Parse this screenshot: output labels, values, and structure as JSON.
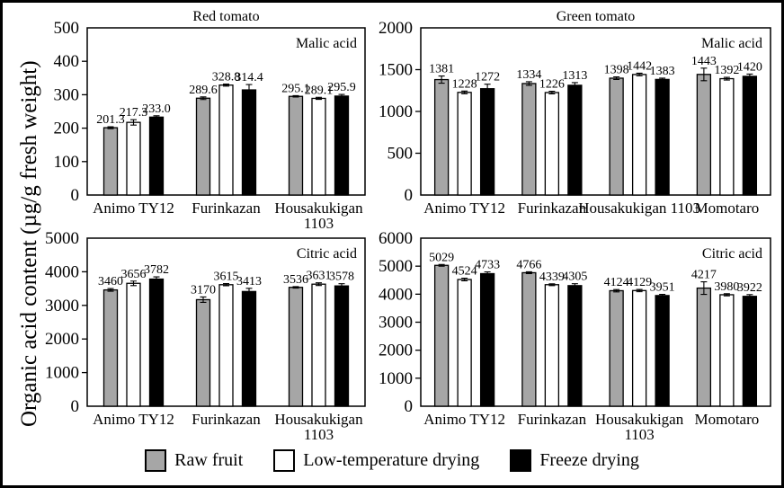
{
  "figure": {
    "y_axis_label": "Organic acid content (µg/g fresh weight)",
    "background_color": "#ffffff",
    "border_color": "#000000",
    "legend": [
      {
        "label": "Raw fruit",
        "color": "#a6a6a6"
      },
      {
        "label": "Low-temperature drying",
        "color": "#ffffff"
      },
      {
        "label": "Freeze drying",
        "color": "#000000"
      }
    ]
  },
  "chart_data": [
    {
      "type": "bar",
      "title": "Red tomato",
      "inner_label": "Malic acid",
      "ylabel": "Organic acid content (µg/g fresh weight)",
      "ylim": [
        0,
        500
      ],
      "ytick_step": 100,
      "value_decimals": 1,
      "grid": false,
      "legend_position": "bottom-shared",
      "categories": [
        "Animo TY12",
        "Furinkazan",
        "Housakukigan\n1103"
      ],
      "series": [
        {
          "name": "Raw fruit",
          "values": [
            201.3,
            289.6,
            295.1
          ],
          "errors": [
            3,
            4,
            2
          ]
        },
        {
          "name": "Low-temperature drying",
          "values": [
            217.3,
            328.8,
            289.1
          ],
          "errors": [
            8,
            3,
            3
          ]
        },
        {
          "name": "Freeze drying",
          "values": [
            233.0,
            314.4,
            295.9
          ],
          "errors": [
            4,
            16,
            5
          ]
        }
      ]
    },
    {
      "type": "bar",
      "title": "Green tomato",
      "inner_label": "Malic acid",
      "ylabel": "Organic acid content (µg/g fresh weight)",
      "ylim": [
        0,
        2000
      ],
      "ytick_step": 500,
      "value_decimals": 0,
      "grid": false,
      "legend_position": "bottom-shared",
      "categories": [
        "Animo TY12",
        "Furinkazan",
        "Housakukigan 1103",
        "Momotaro"
      ],
      "series": [
        {
          "name": "Raw fruit",
          "values": [
            1381,
            1334,
            1398,
            1443
          ],
          "errors": [
            43,
            22,
            16,
            75
          ]
        },
        {
          "name": "Low-temperature drying",
          "values": [
            1228,
            1226,
            1442,
            1392
          ],
          "errors": [
            16,
            16,
            16,
            16
          ]
        },
        {
          "name": "Freeze drying",
          "values": [
            1272,
            1313,
            1383,
            1420
          ],
          "errors": [
            54,
            32,
            16,
            27
          ]
        }
      ]
    },
    {
      "type": "bar",
      "title": "",
      "inner_label": "Citric acid",
      "ylabel": "Organic acid content (µg/g fresh weight)",
      "ylim": [
        0,
        5000
      ],
      "ytick_step": 1000,
      "value_decimals": 0,
      "grid": false,
      "legend_position": "bottom-shared",
      "categories": [
        "Animo TY12",
        "Furinkazan",
        "Housakukigan\n1103"
      ],
      "series": [
        {
          "name": "Raw fruit",
          "values": [
            3460,
            3170,
            3536
          ],
          "errors": [
            40,
            80,
            21
          ]
        },
        {
          "name": "Low-temperature drying",
          "values": [
            3656,
            3615,
            3631
          ],
          "errors": [
            67,
            32,
            40
          ]
        },
        {
          "name": "Freeze drying",
          "values": [
            3782,
            3413,
            3578
          ],
          "errors": [
            67,
            94,
            67
          ]
        }
      ]
    },
    {
      "type": "bar",
      "title": "",
      "inner_label": "Citric acid",
      "ylabel": "Organic acid content (µg/g fresh weight)",
      "ylim": [
        0,
        6000
      ],
      "ytick_step": 1000,
      "value_decimals": 0,
      "grid": false,
      "legend_position": "bottom-shared",
      "categories": [
        "Animo TY12",
        "Furinkazan",
        "Housakukigan\n1103",
        "Momotaro"
      ],
      "series": [
        {
          "name": "Raw fruit",
          "values": [
            5029,
            4766,
            4124,
            4217
          ],
          "errors": [
            32,
            32,
            42,
            224
          ]
        },
        {
          "name": "Low-temperature drying",
          "values": [
            4524,
            4339,
            4129,
            3980
          ],
          "errors": [
            48,
            32,
            42,
            38
          ]
        },
        {
          "name": "Freeze drying",
          "values": [
            4733,
            4305,
            3951,
            3922
          ],
          "errors": [
            64,
            70,
            42,
            64
          ]
        }
      ]
    }
  ]
}
